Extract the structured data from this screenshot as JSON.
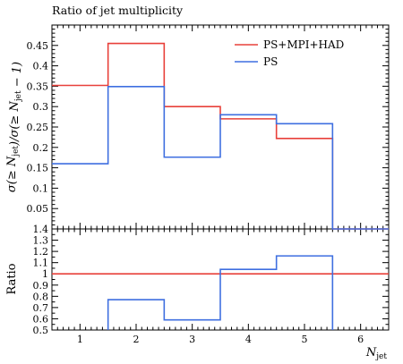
{
  "chart_data": {
    "type": "line",
    "title": "Ratio of jet multiplicity",
    "xlabel": "N_jet",
    "ylabel": "σ(≥ N_jet)/σ(≥ N_jet − 1)",
    "xlim": [
      0.5,
      6.5
    ],
    "xticks": [
      "1",
      "2",
      "3",
      "4",
      "5",
      "6"
    ],
    "bin_edges": [
      0.5,
      1.5,
      2.5,
      3.5,
      4.5,
      5.5,
      6.5
    ],
    "ylim": [
      0,
      0.5
    ],
    "yticks": [
      "0.05",
      "0.1",
      "0.15",
      "0.2",
      "0.25",
      "0.3",
      "0.35",
      "0.4",
      "0.45"
    ],
    "legend_position": "top-right",
    "series": [
      {
        "name": "PS+MPI+HAD",
        "color": "#e8403a",
        "values": [
          0.352,
          0.455,
          0.3,
          0.27,
          0.222,
          0.0
        ]
      },
      {
        "name": "PS",
        "color": "#3f6fe0",
        "values": [
          0.16,
          0.349,
          0.176,
          0.28,
          0.258,
          0.0
        ]
      }
    ],
    "ratio_panel": {
      "ylabel": "Ratio",
      "ylim": [
        0.5,
        1.4
      ],
      "yticks": [
        "0.5",
        "0.6",
        "0.7",
        "0.8",
        "0.9",
        "1",
        "1.1",
        "1.2",
        "1.3",
        "1.4"
      ],
      "series": [
        {
          "name": "PS+MPI+HAD",
          "color": "#e8403a",
          "values": [
            1.0,
            1.0,
            1.0,
            1.0,
            1.0,
            1.0
          ]
        },
        {
          "name": "PS",
          "color": "#3f6fe0",
          "values": [
            null,
            0.77,
            0.59,
            1.04,
            1.16,
            null
          ]
        }
      ]
    }
  }
}
